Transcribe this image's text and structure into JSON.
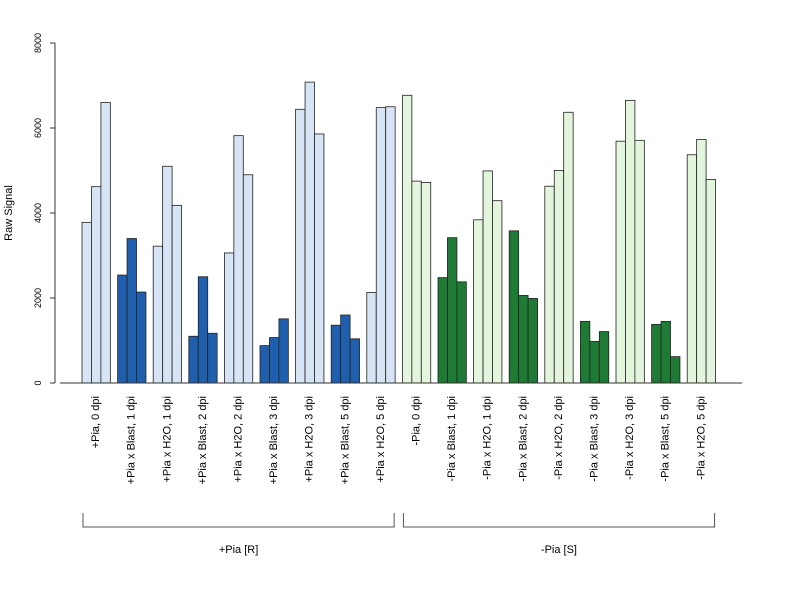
{
  "chart_data": {
    "type": "bar",
    "ylabel": "Raw Signal",
    "ylim": [
      0,
      8000
    ],
    "yticks": [
      0,
      2000,
      4000,
      6000,
      8000
    ],
    "categories": [
      "+Pia, 0 dpi",
      "+Pia x Blast, 1 dpi",
      "+Pia x H2O, 1 dpi",
      "+Pia x Blast, 2 dpi",
      "+Pia x H2O, 2 dpi",
      "+Pia x Blast, 3 dpi",
      "+Pia x H2O, 3 dpi",
      "+Pia x Blast, 5 dpi",
      "+Pia x H2O, 5 dpi",
      "-Pia, 0 dpi",
      "-Pia x Blast, 1 dpi",
      "-Pia x H2O, 1 dpi",
      "-Pia x Blast, 2 dpi",
      "-Pia x H2O, 2 dpi",
      "-Pia x Blast, 3 dpi",
      "-Pia x H2O, 3 dpi",
      "-Pia x Blast, 5 dpi",
      "-Pia x H2O, 5 dpi"
    ],
    "replicates": [
      [
        3780,
        4620,
        6600
      ],
      [
        2540,
        3400,
        2140
      ],
      [
        3220,
        5100,
        4180
      ],
      [
        1100,
        2500,
        1170
      ],
      [
        3060,
        5820,
        4900
      ],
      [
        880,
        1070,
        1510
      ],
      [
        6440,
        7080,
        5860
      ],
      [
        1360,
        1600,
        1040
      ],
      [
        2130,
        6480,
        6500
      ],
      [
        6770,
        4750,
        4720
      ],
      [
        2480,
        3420,
        2380
      ],
      [
        3840,
        4990,
        4290
      ],
      [
        3580,
        2060,
        1990
      ],
      [
        4630,
        5000,
        6370
      ],
      [
        1450,
        980,
        1210
      ],
      [
        5690,
        6650,
        5710
      ],
      [
        1380,
        1450,
        620
      ],
      [
        5370,
        5730,
        4790
      ]
    ],
    "category_colors": [
      "#D6E4F5",
      "#1F5FAD",
      "#D6E4F5",
      "#1F5FAD",
      "#D6E4F5",
      "#1F5FAD",
      "#D6E4F5",
      "#1F5FAD",
      "#D6E4F5",
      "#E4F5DE",
      "#1E7A34",
      "#E4F5DE",
      "#1E7A34",
      "#E4F5DE",
      "#1E7A34",
      "#E4F5DE",
      "#1E7A34",
      "#E4F5DE"
    ],
    "groups": [
      {
        "label": "+Pia [R]",
        "from_index": 0,
        "to_index": 8
      },
      {
        "label": "-Pia [S]",
        "from_index": 9,
        "to_index": 17
      }
    ],
    "grid": false
  }
}
